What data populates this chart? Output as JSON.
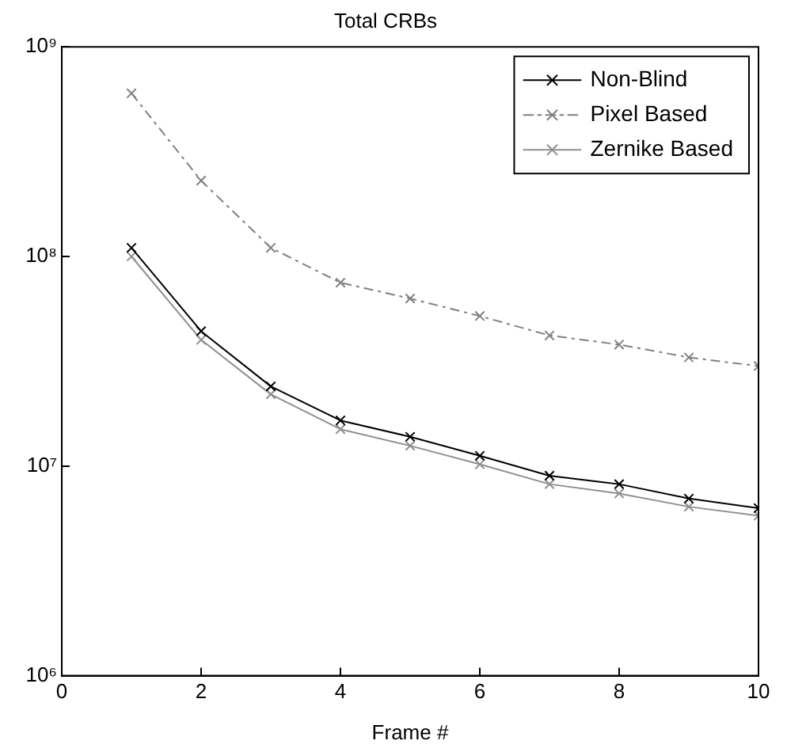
{
  "chart_data": {
    "type": "line",
    "title": "Total CRBs",
    "xlabel": "Frame #",
    "x": [
      1,
      2,
      3,
      4,
      5,
      6,
      7,
      8,
      9,
      10
    ],
    "series": [
      {
        "name": "Non-Blind",
        "color": "#000000",
        "line_style": "solid",
        "values": [
          110000000,
          44000000,
          24000000,
          16500000,
          13800000,
          11200000,
          9000000,
          8200000,
          7000000,
          6300000
        ]
      },
      {
        "name": "Pixel Based",
        "color": "#808080",
        "line_style": "dashed",
        "values": [
          600000000,
          230000000,
          110000000,
          75000000,
          63000000,
          52000000,
          42000000,
          38000000,
          33000000,
          30000000
        ]
      },
      {
        "name": "Zernike Based",
        "color": "#909090",
        "line_style": "solid",
        "values": [
          100000000,
          40000000,
          22000000,
          15000000,
          12500000,
          10200000,
          8200000,
          7400000,
          6400000,
          5800000
        ]
      }
    ],
    "xlim": [
      0,
      10
    ],
    "xticks": [
      0,
      2,
      4,
      6,
      8,
      10
    ],
    "ylim": [
      1000000,
      1000000000
    ],
    "yticks": [
      {
        "value": 1000000,
        "label": "10⁶"
      },
      {
        "value": 10000000,
        "label": "10⁷"
      },
      {
        "value": 100000000,
        "label": "10⁸"
      },
      {
        "value": 1000000000,
        "label": "10⁹"
      }
    ],
    "log": true,
    "grid": false,
    "legend": "top right",
    "marker": "cross"
  }
}
